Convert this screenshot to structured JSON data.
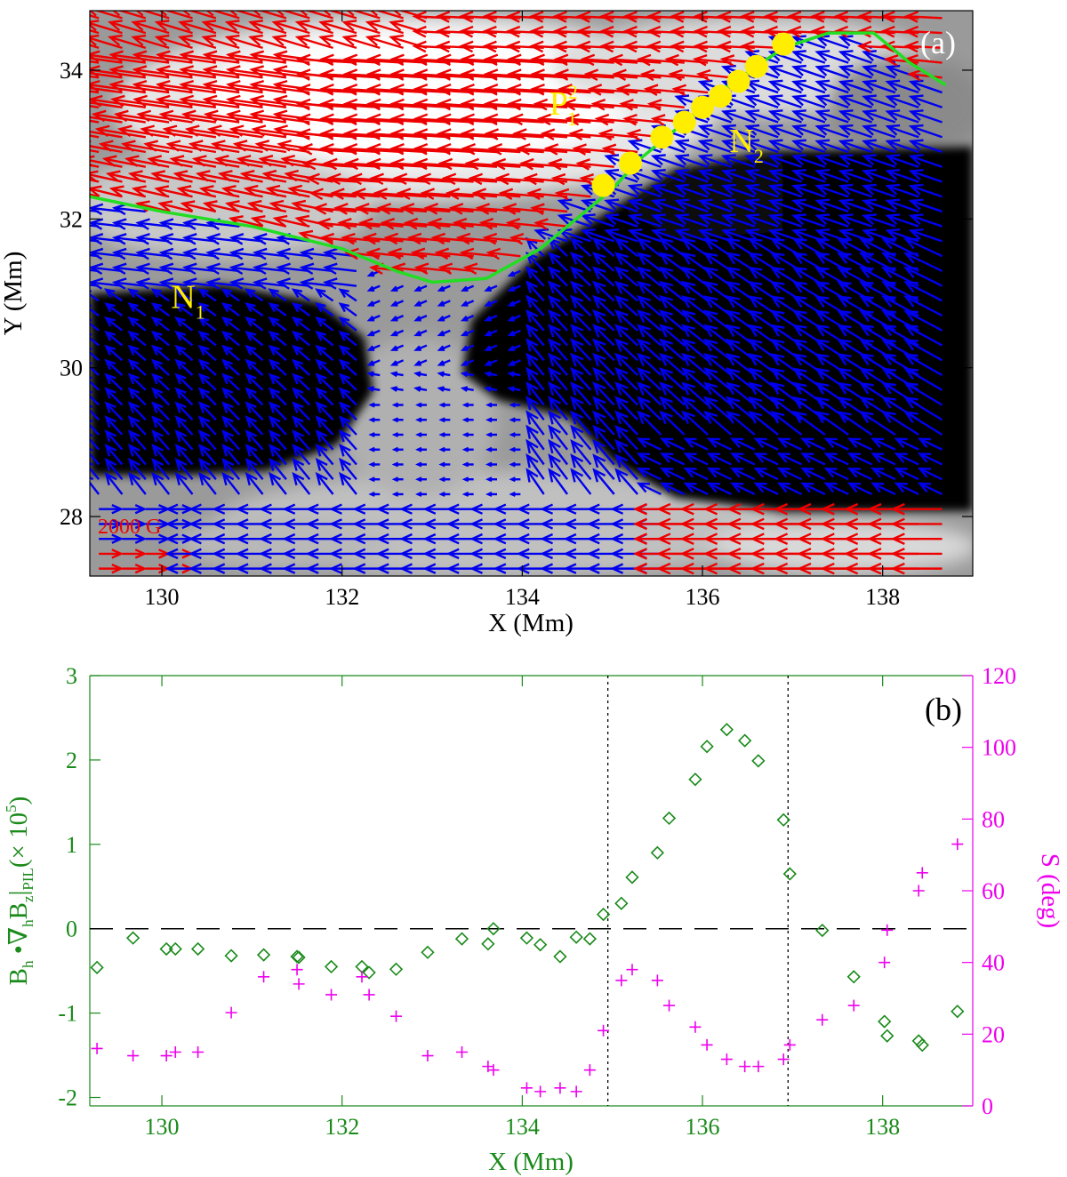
{
  "chart_data": [
    {
      "panel": "(a)",
      "type": "vector-field",
      "xlabel": "X (Mm)",
      "ylabel": "Y (Mm)",
      "xlim": [
        129.2,
        139.0
      ],
      "ylim": [
        27.2,
        34.8
      ],
      "xticks": [
        130,
        132,
        134,
        136,
        138
      ],
      "yticks": [
        28,
        30,
        32,
        34
      ],
      "background": "grayscale magnetogram Bz (white = positive, black = negative)",
      "vector_colors": {
        "positive_region": "#ee0000",
        "negative_region": "#0000ee"
      },
      "scale_label": "2000 G",
      "region_labels": [
        {
          "text": "N",
          "sub": "1",
          "x": 130.1,
          "y": 30.8
        },
        {
          "text": "N",
          "sub": "2",
          "x": 136.3,
          "y": 32.9
        },
        {
          "text": "P",
          "sub": "1",
          "sup": "2",
          "x": 134.3,
          "y": 33.4
        }
      ],
      "pil_line": [
        [
          129.2,
          32.3
        ],
        [
          130.0,
          32.1
        ],
        [
          131.0,
          31.9
        ],
        [
          132.0,
          31.6
        ],
        [
          132.6,
          31.3
        ],
        [
          133.0,
          31.15
        ],
        [
          133.6,
          31.2
        ],
        [
          134.2,
          31.6
        ],
        [
          134.7,
          32.1
        ],
        [
          135.0,
          32.4
        ],
        [
          135.3,
          32.8
        ],
        [
          135.8,
          33.3
        ],
        [
          136.3,
          33.8
        ],
        [
          136.9,
          34.3
        ],
        [
          137.4,
          34.5
        ],
        [
          137.9,
          34.5
        ],
        [
          138.3,
          34.1
        ],
        [
          138.7,
          33.8
        ]
      ],
      "pil_points": [
        [
          134.9,
          32.45
        ],
        [
          135.2,
          32.75
        ],
        [
          135.55,
          33.1
        ],
        [
          135.8,
          33.3
        ],
        [
          136.0,
          33.5
        ],
        [
          136.2,
          33.65
        ],
        [
          136.4,
          33.85
        ],
        [
          136.6,
          34.05
        ],
        [
          136.9,
          34.35
        ]
      ]
    },
    {
      "panel": "(b)",
      "type": "scatter",
      "xlabel": "X (Mm)",
      "ylabel_left": "B_h ·∇_h B_z |_PIL (×10^5)",
      "ylabel_right": "S (deg)",
      "xlim": [
        129.2,
        139.0
      ],
      "ylim_left": [
        -2.1,
        3.0
      ],
      "ylim_right": [
        0,
        120
      ],
      "xticks": [
        130,
        132,
        134,
        136,
        138
      ],
      "yticks_left": [
        -2,
        -1,
        0,
        1,
        2,
        3
      ],
      "yticks_right": [
        0,
        20,
        40,
        60,
        80,
        100,
        120
      ],
      "vlines": [
        134.95,
        136.95
      ],
      "hline": 0,
      "colors": {
        "left_axis": "#1a8a1a",
        "right_axis": "#ee00ee"
      },
      "series": [
        {
          "marker": "diamond",
          "axis": "left",
          "x": [
            129.28,
            129.68,
            130.05,
            130.15,
            130.4,
            130.77,
            131.13,
            131.5,
            131.52,
            131.88,
            132.22,
            132.3,
            132.6,
            132.95,
            133.33,
            133.62,
            133.68,
            134.05,
            134.2,
            134.42,
            134.6,
            134.75,
            134.9,
            135.1,
            135.22,
            135.5,
            135.63,
            135.92,
            136.05,
            136.27,
            136.47,
            136.62,
            136.9,
            136.97,
            137.33,
            137.68,
            138.02,
            138.05,
            138.4,
            138.44,
            138.83
          ],
          "y": [
            -0.46,
            -0.11,
            -0.24,
            -0.24,
            -0.24,
            -0.32,
            -0.31,
            -0.33,
            -0.34,
            -0.45,
            -0.45,
            -0.52,
            -0.48,
            -0.28,
            -0.12,
            -0.18,
            0.0,
            -0.11,
            -0.19,
            -0.33,
            -0.1,
            -0.12,
            0.17,
            0.3,
            0.61,
            0.9,
            1.31,
            1.77,
            2.16,
            2.36,
            2.23,
            1.99,
            1.29,
            0.65,
            -0.02,
            -0.57,
            -1.1,
            -1.27,
            -1.33,
            -1.38,
            -0.98
          ]
        },
        {
          "marker": "plus",
          "axis": "right",
          "x": [
            129.28,
            129.68,
            130.05,
            130.15,
            130.4,
            130.77,
            131.13,
            131.5,
            131.52,
            131.88,
            132.22,
            132.3,
            132.6,
            132.95,
            133.33,
            133.62,
            133.68,
            134.05,
            134.2,
            134.42,
            134.6,
            134.75,
            134.9,
            135.1,
            135.22,
            135.5,
            135.63,
            135.92,
            136.05,
            136.27,
            136.47,
            136.62,
            136.9,
            136.97,
            137.33,
            137.68,
            138.02,
            138.05,
            138.4,
            138.44,
            138.83
          ],
          "y": [
            16,
            14,
            14,
            15,
            15,
            26,
            36,
            38,
            34,
            31,
            36,
            31,
            25,
            14,
            15,
            11,
            10,
            5,
            4,
            5,
            4,
            10,
            21,
            35,
            38,
            35,
            28,
            22,
            17,
            13,
            11,
            11,
            13,
            17,
            24,
            28,
            40,
            49,
            60,
            65,
            73
          ]
        }
      ]
    }
  ],
  "labels": {
    "panel_a": "(a)",
    "panel_b": "(b)",
    "a_xlabel": "X (Mm)",
    "a_ylabel": "Y (Mm)",
    "b_xlabel": "X (Mm)",
    "b_ylabel_right": "S (deg)",
    "scale": "2000 G"
  }
}
